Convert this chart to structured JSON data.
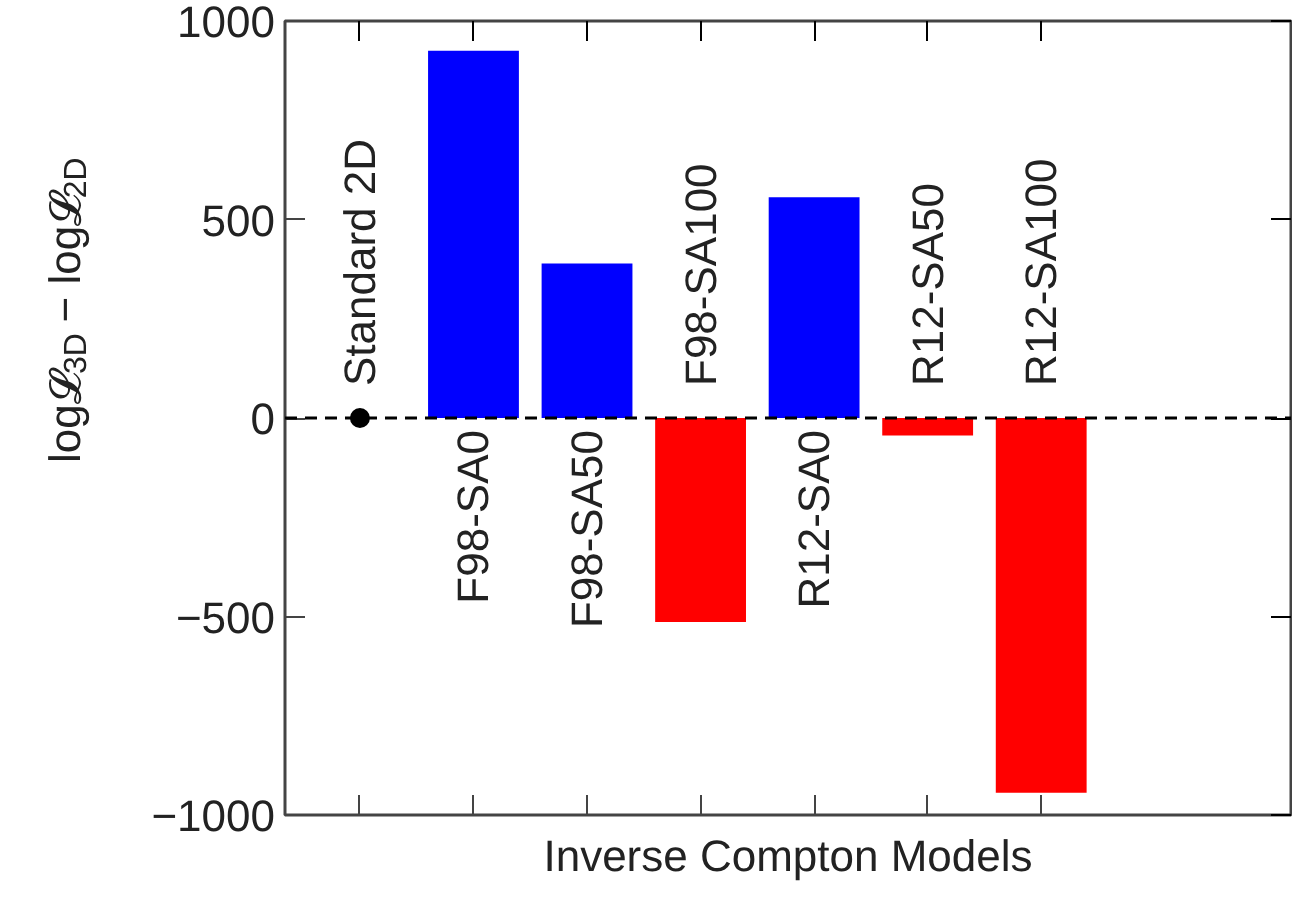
{
  "chart_data": {
    "type": "bar",
    "xlabel": "Inverse Compton Models",
    "ylabel": "log𝓛$_{3D}$ − log𝓛$_{2D}$",
    "categories": [
      "Standard 2D",
      "F98-SA0",
      "F98-SA50",
      "F98-SA100",
      "R12-SA0",
      "R12-SA50",
      "R12-SA100"
    ],
    "series": [
      {
        "type": "scatter",
        "color": "#000000",
        "values": [
          0,
          null,
          null,
          null,
          null,
          null,
          null
        ]
      },
      {
        "colors": [
          null,
          "#0000ff",
          "#0000ff",
          "#ff0000",
          "#0000ff",
          "#ff0000",
          "#ff0000"
        ],
        "values": [
          null,
          925,
          389,
          -514,
          556,
          -44,
          -944
        ]
      }
    ],
    "ylim": [
      -1000,
      1000
    ],
    "yticks": [
      -1000,
      -500,
      0,
      500,
      1000
    ],
    "ref_lines": [
      {
        "axis": "y",
        "value": 0,
        "color": "#000000",
        "line_style": "dashed"
      }
    ],
    "marker": "circle"
  }
}
